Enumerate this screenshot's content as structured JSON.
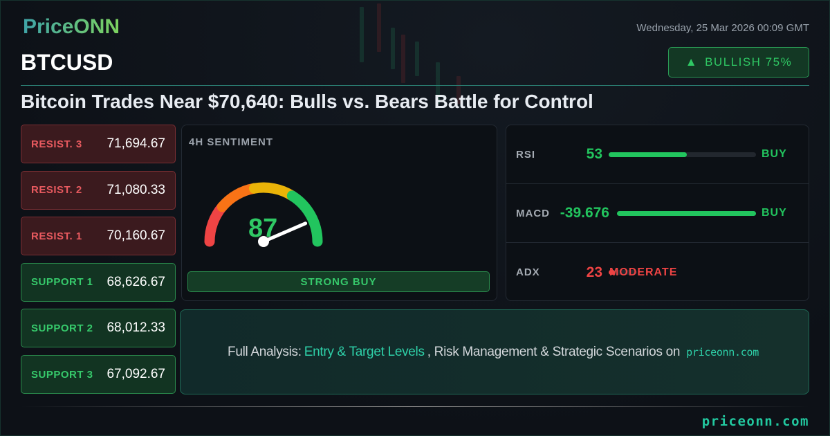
{
  "brand": {
    "logo": "PriceONN",
    "footer_url": "priceonn.com"
  },
  "header": {
    "date": "Wednesday, 25 Mar 2026 00:09 GMT",
    "ticker": "BTCUSD",
    "badge": {
      "icon": "triangle-up-icon",
      "arrow": "▲",
      "label": "BULLISH 75%"
    },
    "headline": "Bitcoin Trades Near $70,640: Bulls vs. Bears Battle for Control"
  },
  "levels": [
    {
      "label": "RESIST. 3",
      "value": "71,694.67",
      "type": "resistance"
    },
    {
      "label": "RESIST. 2",
      "value": "71,080.33",
      "type": "resistance"
    },
    {
      "label": "RESIST. 1",
      "value": "70,160.67",
      "type": "resistance"
    },
    {
      "label": "SUPPORT 1",
      "value": "68,626.67",
      "type": "support"
    },
    {
      "label": "SUPPORT 2",
      "value": "68,012.33",
      "type": "support"
    },
    {
      "label": "SUPPORT 3",
      "value": "67,092.67",
      "type": "support"
    }
  ],
  "sentiment": {
    "title": "4H SENTIMENT",
    "score": "87",
    "signal": "STRONG BUY",
    "gauge_colors": [
      "#ef4444",
      "#f97316",
      "#eab308",
      "#22c55e"
    ]
  },
  "indicators": [
    {
      "name": "RSI",
      "value": "53",
      "fill_percent": 53,
      "signal": "BUY",
      "color": "#22c55e"
    },
    {
      "name": "MACD",
      "value": "-39.676",
      "fill_percent": 100,
      "signal": "BUY",
      "color": "#22c55e"
    },
    {
      "name": "ADX",
      "value": "23",
      "fill_percent": 23,
      "signal": "MODERATE",
      "color": "#ef4444"
    }
  ],
  "banner": {
    "prefix": "Full Analysis:",
    "highlight": "Entry & Target Levels",
    "middle": ", Risk Management & Strategic Scenarios on",
    "link": "priceonn.com"
  }
}
